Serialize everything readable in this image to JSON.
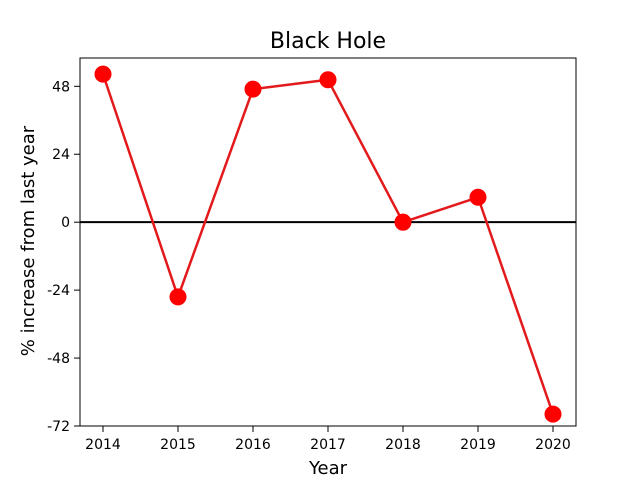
{
  "chart_data": {
    "type": "line",
    "title": "Black Hole",
    "xlabel": "Year",
    "ylabel": "% increase from last year",
    "x": [
      "2014",
      "2015",
      "2016",
      "2017",
      "2018",
      "2019",
      "2020"
    ],
    "series": [
      {
        "color": "#ff0000",
        "line_color": "#e31a1c",
        "values": [
          52.3,
          -26.4,
          47.0,
          50.3,
          0.0,
          8.8,
          -67.8
        ]
      }
    ],
    "ylim": [
      -72,
      58
    ],
    "yticks": [
      -72,
      -48,
      -24,
      0,
      24,
      48
    ],
    "zero_line": true,
    "grid": false,
    "legend": "none"
  }
}
